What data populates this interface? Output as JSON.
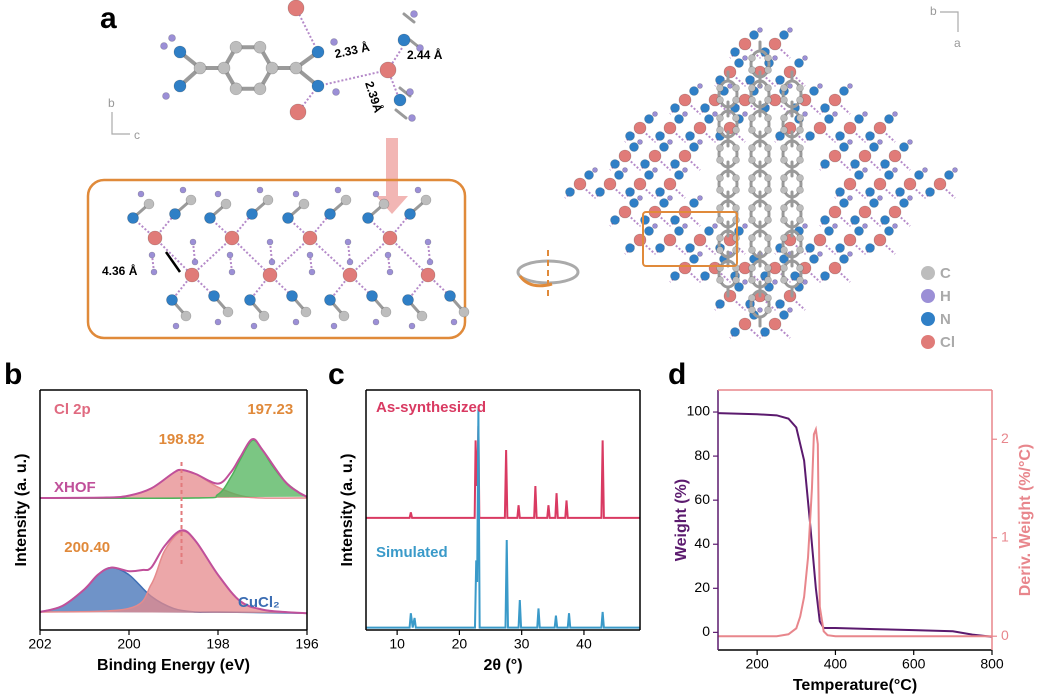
{
  "panel_labels": [
    "a",
    "b",
    "c",
    "d"
  ],
  "structure": {
    "distances": [
      "2.33 Å",
      "2.44 Å",
      "2.39Å"
    ],
    "chain_distance": "4.36 Å",
    "axes_left": [
      "b",
      "c"
    ],
    "axes_right": [
      "b",
      "a"
    ],
    "legend": [
      {
        "label": "C",
        "color": "#bdbdbd"
      },
      {
        "label": "H",
        "color": "#9b8fd6"
      },
      {
        "label": "N",
        "color": "#2f7fc6"
      },
      {
        "label": "Cl",
        "color": "#e07b78"
      }
    ]
  },
  "chart_data": [
    {
      "type": "line",
      "smooth": true,
      "title": "Cl 2p",
      "xlabel": "Binding Energy (eV)",
      "ylabel": "Intensity (a. u.)",
      "xlim": [
        202,
        196
      ],
      "xticks": [
        202,
        200,
        198,
        196
      ],
      "ylim": [
        0,
        100
      ],
      "series": [
        {
          "color": "#e58a8c",
          "fill": true,
          "x": [
            202,
            200.5,
            200,
            199.5,
            199,
            198.82,
            198.5,
            198,
            197.5,
            197,
            196
          ],
          "values": [
            55,
            55.2,
            56,
            59,
            65.5,
            66.7,
            65,
            59.5,
            56,
            55,
            55
          ]
        },
        {
          "color": "#4fb35a",
          "fill": true,
          "x": [
            202,
            198.5,
            198,
            197.7,
            197.5,
            197.23,
            197,
            196.8,
            196.5,
            196.2,
            196
          ],
          "values": [
            55,
            55,
            56.5,
            64,
            71,
            79,
            75,
            69,
            62,
            57.5,
            55.5
          ]
        },
        {
          "name": "XHOF",
          "color": "#c0509a",
          "x": [
            202,
            200.5,
            200,
            199.5,
            199,
            198.82,
            198.5,
            198,
            197.7,
            197.5,
            197.23,
            197,
            196.5,
            196.2,
            196
          ],
          "values": [
            55,
            55.2,
            56,
            59,
            65.5,
            66.7,
            65,
            61,
            66,
            72,
            79.5,
            75,
            62,
            57.5,
            55.5
          ]
        },
        {
          "color": "#3f6fb5",
          "fill": true,
          "x": [
            202,
            201.5,
            201,
            200.7,
            200.4,
            200,
            199.5,
            199,
            198.5,
            198,
            196
          ],
          "values": [
            7.5,
            10,
            17,
            23,
            26,
            23,
            14,
            9,
            7.5,
            7.5,
            7
          ]
        },
        {
          "color": "#e58a8c",
          "fill": true,
          "x": [
            202,
            200,
            199.5,
            199.2,
            198.82,
            198.5,
            198,
            197.5,
            197,
            196.5,
            196
          ],
          "values": [
            7.5,
            9,
            19,
            33,
            41,
            37,
            23,
            12,
            8.5,
            7.5,
            7
          ]
        },
        {
          "name": "CuCl₂",
          "color": "#c0509a",
          "x": [
            202,
            201.5,
            201,
            200.7,
            200.4,
            200,
            199.7,
            199.5,
            199.2,
            198.82,
            198.5,
            198,
            197.5,
            197,
            196.5,
            196
          ],
          "values": [
            7.5,
            10,
            17,
            23,
            26,
            24.5,
            25,
            26,
            35,
            41.5,
            37,
            23,
            12,
            8.5,
            7.5,
            7
          ]
        }
      ],
      "annotations": [
        {
          "x": 198.82,
          "label": "198.82"
        },
        {
          "x": 197.23,
          "label": "197.23"
        },
        {
          "x": 200.4,
          "label": "200.40"
        }
      ],
      "annotation_color": "#e0893a"
    },
    {
      "type": "line",
      "xlabel": "2θ (°)",
      "ylabel": "Intensity (a. u.)",
      "xlim": [
        5,
        49
      ],
      "xticks": [
        10,
        20,
        30,
        40
      ],
      "ylim": [
        0,
        100
      ],
      "series": [
        {
          "name": "As-synthesized",
          "color": "#d93a62",
          "x": [
            5,
            12,
            12.2,
            12.4,
            22.45,
            22.6,
            22.8,
            22.9,
            23.05,
            23.2,
            27.3,
            27.5,
            27.7,
            29.3,
            29.5,
            29.7,
            32,
            32.2,
            32.4,
            34.1,
            34.3,
            34.5,
            35.4,
            35.6,
            35.8,
            37,
            37.2,
            37.4,
            42.8,
            43,
            43.2,
            49
          ],
          "values": [
            46.7,
            46.7,
            49,
            46.7,
            46.7,
            79,
            60,
            65,
            85,
            46.7,
            46.7,
            75,
            46.7,
            46.7,
            52,
            46.7,
            46.7,
            60,
            46.7,
            46.7,
            52,
            46.7,
            46.7,
            57,
            46.7,
            46.7,
            54,
            46.7,
            46.7,
            79,
            46.7,
            46.7
          ]
        },
        {
          "name": "Simulated",
          "color": "#3a9ac9",
          "x": [
            5,
            12,
            12.2,
            12.5,
            12.8,
            13,
            22.5,
            22.7,
            22.85,
            23.05,
            23.25,
            27.4,
            27.6,
            27.8,
            29.5,
            29.7,
            29.9,
            32.5,
            32.7,
            32.9,
            35.3,
            35.5,
            35.7,
            37.4,
            37.6,
            37.8,
            42.8,
            43,
            43.2,
            49
          ],
          "values": [
            1,
            1,
            7,
            1,
            5,
            1,
            1,
            29,
            20,
            92,
            1,
            1,
            37.5,
            1,
            1,
            12.5,
            1,
            1,
            9,
            1,
            1,
            6,
            1,
            1,
            7,
            1,
            1,
            7.5,
            1,
            1
          ]
        }
      ]
    },
    {
      "type": "line",
      "xlabel": "Temperature(°C)",
      "ylabel": "Weight (%)",
      "y2label": "Deriv. Weight (%/°C)",
      "xlim": [
        100,
        800
      ],
      "xticks": [
        200,
        400,
        600,
        800
      ],
      "ylim": [
        -8,
        110
      ],
      "yticks": [
        0,
        20,
        40,
        60,
        80,
        100
      ],
      "y2lim": [
        -0.14,
        2.5
      ],
      "y2ticks": [
        0,
        1,
        2
      ],
      "ycolor": "#5b1a6e",
      "y2color": "#e8868c",
      "series": [
        {
          "color": "#5b1a6e",
          "x": [
            100,
            200,
            250,
            280,
            300,
            320,
            335,
            350,
            360,
            370,
            400,
            500,
            600,
            700,
            750,
            800
          ],
          "values": [
            99.5,
            99,
            98.5,
            97,
            93,
            78,
            50,
            20,
            5,
            2,
            2,
            1.5,
            1,
            0.5,
            -1,
            -2
          ]
        },
        {
          "color": "#e8868c",
          "axis": "y2",
          "x": [
            100,
            200,
            250,
            280,
            300,
            310,
            320,
            330,
            340,
            345,
            350,
            355,
            360,
            370,
            380,
            400,
            600,
            800
          ],
          "values": [
            0,
            0,
            0,
            0.02,
            0.08,
            0.2,
            0.4,
            0.8,
            1.5,
            2.05,
            2.1,
            1.95,
            0.3,
            0.05,
            0.01,
            0,
            0,
            0
          ]
        }
      ]
    }
  ]
}
